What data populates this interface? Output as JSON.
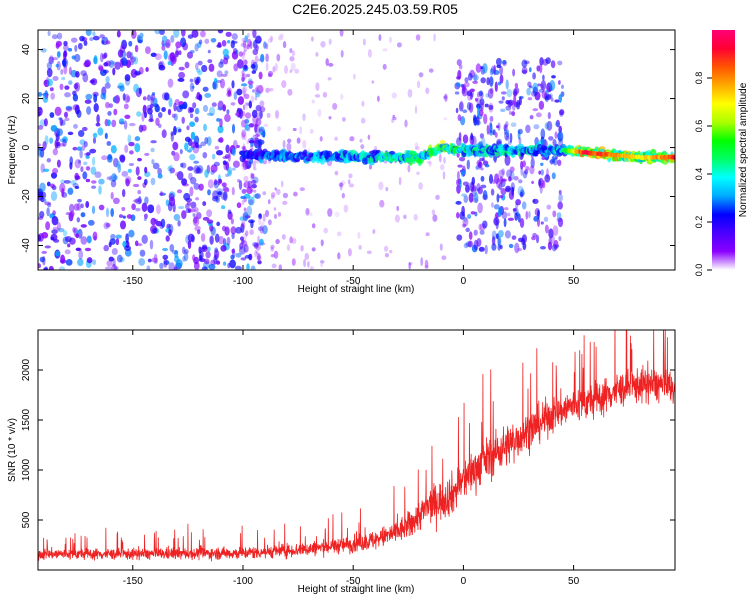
{
  "title": "C2E6.2025.245.03.59.R05",
  "chart_data": [
    {
      "type": "heatmap",
      "xlabel": "Height of straight line (km)",
      "ylabel": "Frequency (Hz)",
      "xlim": [
        -193,
        96
      ],
      "ylim": [
        -50,
        48
      ],
      "xticks": [
        -150,
        -100,
        -50,
        0,
        50
      ],
      "yticks": [
        -40,
        -20,
        0,
        20,
        40
      ],
      "colorbar": {
        "label": "Normalized spectral amplitude",
        "ticks": [
          0.0,
          0.2,
          0.4,
          0.6,
          0.8
        ],
        "tick_labels": [
          "0.0",
          "0.2",
          "0.4",
          "0.6",
          "0.8"
        ],
        "range": [
          0,
          1
        ],
        "colormap": [
          "#ffffff",
          "#8b00ff",
          "#4b00ff",
          "#0000ff",
          "#00aaff",
          "#00ffff",
          "#00ff66",
          "#00ff00",
          "#aaff00",
          "#ffff00",
          "#ffaa00",
          "#ff5500",
          "#ff0033",
          "#ff0077"
        ]
      },
      "features": {
        "background_noise": {
          "x_range": [
            -193,
            -100
          ],
          "amplitude": 0.2
        },
        "sparse_noise": {
          "x_range": [
            -100,
            -5
          ],
          "amplitude": 0.1
        },
        "noise_burst": {
          "x_range": [
            -3,
            45
          ],
          "amplitude": 0.2
        },
        "signal_track": [
          {
            "x": -100,
            "f": -3,
            "amp": 0.3
          },
          {
            "x": -50,
            "f": -4,
            "amp": 0.45
          },
          {
            "x": -20,
            "f": -4,
            "amp": 0.55
          },
          {
            "x": -10,
            "f": 0,
            "amp": 0.7
          },
          {
            "x": 0,
            "f": -1,
            "amp": 0.5
          },
          {
            "x": 45,
            "f": -1,
            "amp": 0.45
          },
          {
            "x": 55,
            "f": -2,
            "amp": 0.95
          },
          {
            "x": 80,
            "f": -4,
            "amp": 0.7
          },
          {
            "x": 96,
            "f": -4,
            "amp": 0.9
          }
        ]
      }
    },
    {
      "type": "line",
      "xlabel": "Height of straight line (km)",
      "ylabel": "SNR (10 * v/v)",
      "xlim": [
        -193,
        96
      ],
      "ylim": [
        0,
        2400
      ],
      "xticks": [
        -150,
        -100,
        -50,
        0,
        50
      ],
      "yticks": [
        500,
        1000,
        1500,
        2000
      ],
      "series": [
        {
          "color": "#ee2222",
          "x": [
            -193,
            -150,
            -100,
            -75,
            -50,
            -40,
            -30,
            -25,
            -20,
            -15,
            -10,
            -5,
            0,
            5,
            10,
            20,
            30,
            40,
            50,
            60,
            70,
            80,
            90,
            96
          ],
          "y": [
            160,
            160,
            170,
            200,
            260,
            300,
            380,
            440,
            550,
            650,
            700,
            760,
            900,
            1000,
            1100,
            1250,
            1400,
            1550,
            1650,
            1700,
            1800,
            1850,
            1850,
            1800
          ],
          "noise_amplitude": [
            80,
            80,
            90,
            100,
            120,
            140,
            170,
            200,
            230,
            260,
            280,
            300,
            300,
            300,
            300,
            300,
            280,
            260,
            260,
            260,
            250,
            250,
            250,
            250
          ]
        }
      ]
    }
  ]
}
